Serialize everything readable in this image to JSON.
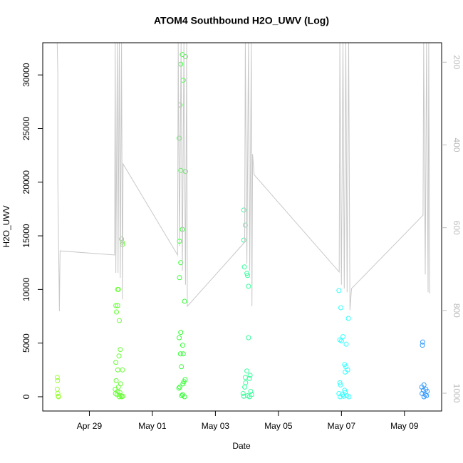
{
  "chart_data": {
    "type": "scatter",
    "title": "ATOM4 Southbound H2O_UWV (Log)",
    "x_label": "Date",
    "y_label": "H2O_UWV",
    "xlim": [
      27.52,
      40.18
    ],
    "ylim": [
      -1330,
      33000
    ],
    "y2lim": [
      1043,
      153
    ],
    "xticks": [
      {
        "value": 29,
        "label": "Apr 29"
      },
      {
        "value": 31,
        "label": "May 01"
      },
      {
        "value": 33,
        "label": "May 03"
      },
      {
        "value": 35,
        "label": "May 05"
      },
      {
        "value": 37,
        "label": "May 07"
      },
      {
        "value": 39,
        "label": "May 09"
      }
    ],
    "yticks": [
      0,
      5000,
      10000,
      15000,
      20000,
      25000,
      30000
    ],
    "y2ticks": [
      200,
      400,
      600,
      800,
      1000
    ],
    "series": [
      {
        "color": "#99ff33",
        "x": [
          27.98,
          27.99,
          27.98,
          28.0,
          28.01,
          28.02
        ],
        "values": [
          1800,
          1500,
          700,
          300,
          50,
          0
        ]
      },
      {
        "color": "#66ff33",
        "x": [
          30.02,
          30.04,
          30.05,
          29.9,
          29.92,
          29.84,
          29.9,
          29.86,
          29.95,
          29.98,
          29.94,
          29.84,
          29.9,
          30.05,
          29.85,
          29.99,
          29.92,
          29.82,
          29.9,
          29.97,
          29.83,
          29.88,
          30.0,
          30.06,
          29.95,
          30.03
        ],
        "values": [
          14700,
          14400,
          14200,
          10000,
          10000,
          8500,
          8500,
          7900,
          7100,
          4400,
          3800,
          3200,
          2500,
          2500,
          1500,
          1200,
          900,
          700,
          500,
          400,
          300,
          200,
          100,
          50,
          0,
          0
        ]
      },
      {
        "color": "#33ff33",
        "x": [
          31.95,
          32.05,
          31.9,
          31.98,
          31.88,
          31.85,
          31.9,
          32.05,
          31.95,
          31.86,
          31.9,
          31.86,
          32.02,
          31.9,
          31.85,
          31.96,
          31.89,
          31.98,
          31.92,
          32.04,
          32.0,
          31.97,
          31.87,
          31.84,
          31.96,
          31.93,
          32.02
        ],
        "values": [
          31900,
          31700,
          31000,
          29500,
          27200,
          24100,
          21100,
          21000,
          15600,
          14500,
          12500,
          11100,
          8900,
          6000,
          5500,
          4800,
          4000,
          4000,
          2800,
          1600,
          1400,
          1200,
          900,
          800,
          200,
          100,
          0
        ]
      },
      {
        "color": "#33ff99",
        "x": [
          33.9,
          33.95,
          33.9,
          33.92,
          34.0,
          34.02,
          34.05,
          34.05,
          34.0,
          34.1,
          33.95,
          34.08,
          33.96,
          33.93,
          34.12,
          33.88,
          34.15,
          34.02,
          33.9,
          34.08
        ],
        "values": [
          17400,
          16000,
          14600,
          12100,
          11500,
          11300,
          10300,
          5500,
          2400,
          2000,
          1800,
          1700,
          1300,
          900,
          500,
          300,
          200,
          100,
          50,
          0
        ]
      },
      {
        "color": "#33ffff",
        "x": [
          36.92,
          36.98,
          37.22,
          37.05,
          36.95,
          37.0,
          37.15,
          37.1,
          37.14,
          37.2,
          37.12,
          36.95,
          36.97,
          37.1,
          37.12,
          36.92,
          37.03,
          37.17,
          37.07,
          37.24,
          36.96
        ],
        "values": [
          9900,
          8300,
          7300,
          5600,
          5300,
          5200,
          4900,
          3000,
          2800,
          2500,
          2300,
          1300,
          1100,
          600,
          400,
          300,
          200,
          100,
          50,
          0,
          0
        ]
      },
      {
        "color": "#3399ff",
        "x": [
          39.58,
          39.57,
          39.62,
          39.55,
          39.68,
          39.6,
          39.72,
          39.56,
          39.66,
          39.7,
          39.62
        ],
        "values": [
          5100,
          4800,
          1100,
          900,
          700,
          600,
          500,
          300,
          200,
          100,
          0
        ]
      },
      {
        "type": "line",
        "axis": "y2",
        "color": "#c8c8c8",
        "x": [
          27.98,
          28.0,
          28.0,
          28.05,
          28.07,
          29.8,
          29.82,
          29.84,
          29.89,
          29.91,
          29.95,
          29.98,
          30.02,
          30.05,
          30.07,
          31.8,
          31.82,
          31.86,
          31.91,
          31.95,
          32.0,
          32.05,
          32.09,
          32.11,
          33.93,
          33.95,
          34.0,
          34.05,
          34.09,
          34.14,
          34.16,
          34.18,
          34.23,
          36.93,
          36.95,
          37.0,
          37.05,
          37.09,
          37.14,
          37.18,
          37.23,
          37.27,
          37.32,
          39.59,
          39.61,
          39.66,
          39.7,
          39.75,
          39.77,
          39.8
        ],
        "values": [
          154,
          231,
          492,
          802,
          656,
          666,
          154,
          709,
          154,
          709,
          154,
          721,
          154,
          773,
          446,
          666,
          154,
          644,
          154,
          704,
          154,
          738,
          154,
          790,
          635,
          154,
          687,
          154,
          704,
          154,
          790,
          422,
          472,
          707,
          154,
          738,
          154,
          747,
          154,
          756,
          154,
          799,
          747,
          570,
          154,
          713,
          154,
          756,
          154,
          759
        ]
      }
    ]
  }
}
